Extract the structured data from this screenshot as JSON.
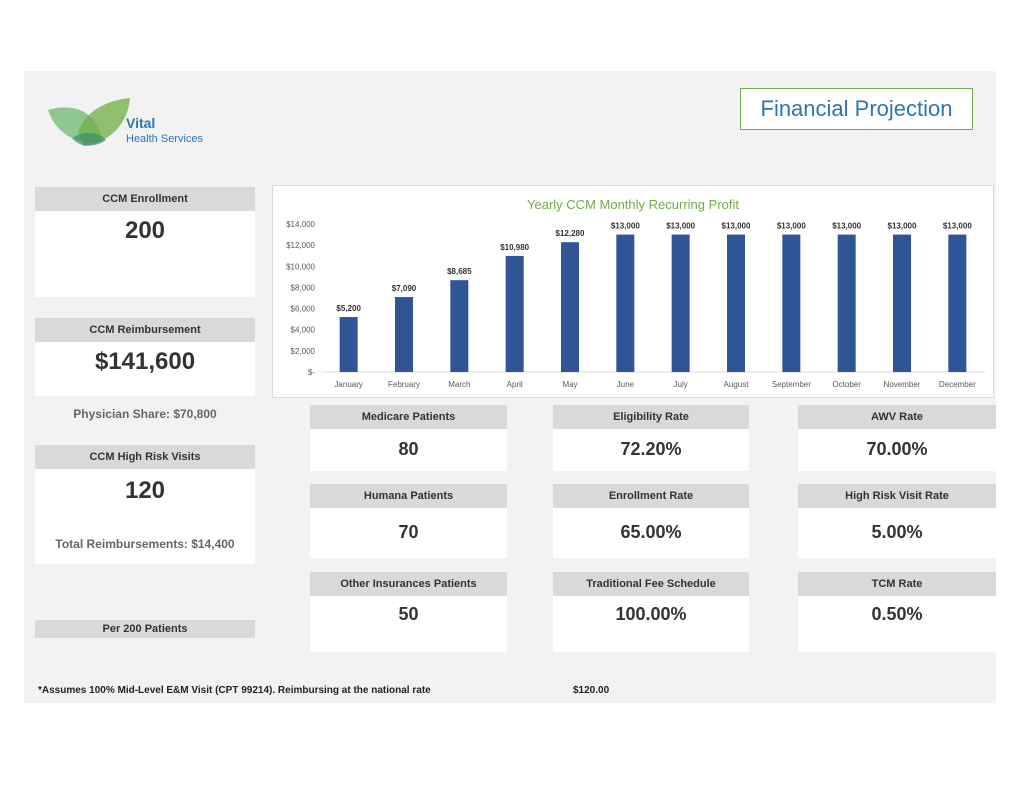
{
  "logo": {
    "name": "Vital",
    "subtitle": "Health Services"
  },
  "title": "Financial Projection",
  "left_cards": {
    "enrollment": {
      "label": "CCM Enrollment",
      "value": "200"
    },
    "reimbursement": {
      "label": "CCM Reimbursement",
      "value": "$141,600",
      "note": "Physician Share: $70,800"
    },
    "high_risk": {
      "label": "CCM High Risk Visits",
      "value": "120",
      "note": "Total Reimbursements: $14,400"
    },
    "per_patients": {
      "label": "Per 200 Patients"
    }
  },
  "metrics": [
    {
      "label": "Medicare Patients",
      "value": "80"
    },
    {
      "label": "Eligibility Rate",
      "value": "72.20%"
    },
    {
      "label": "AWV Rate",
      "value": "70.00%"
    },
    {
      "label": "Humana Patients",
      "value": "70"
    },
    {
      "label": "Enrollment Rate",
      "value": "65.00%"
    },
    {
      "label": "High Risk Visit Rate",
      "value": "5.00%"
    },
    {
      "label": "Other Insurances Patients",
      "value": "50"
    },
    {
      "label": "Traditional Fee Schedule",
      "value": "100.00%"
    },
    {
      "label": "TCM Rate",
      "value": "0.50%"
    }
  ],
  "footnote": {
    "text": "*Assumes 100% Mid-Level E&M Visit (CPT 99214). Reimbursing at the national rate",
    "value": "$120.00"
  },
  "colors": {
    "bar": "#2f5597",
    "title_green": "#70ad47",
    "title_blue": "#2e75b6"
  },
  "chart_data": {
    "type": "bar",
    "title": "Yearly CCM Monthly Recurring Profit",
    "categories": [
      "January",
      "February",
      "March",
      "April",
      "May",
      "June",
      "July",
      "August",
      "September",
      "October",
      "November",
      "December"
    ],
    "values": [
      5200,
      7090,
      8685,
      10980,
      12280,
      13000,
      13000,
      13000,
      13000,
      13000,
      13000,
      13000
    ],
    "data_labels": [
      "$5,200",
      "$7,090",
      "$8,685",
      "$10,980",
      "$12,280",
      "$13,000",
      "$13,000",
      "$13,000",
      "$13,000",
      "$13,000",
      "$13,000",
      "$13,000"
    ],
    "yticks": [
      0,
      2000,
      4000,
      6000,
      8000,
      10000,
      12000,
      14000
    ],
    "ytick_labels": [
      "$-",
      "$2,000",
      "$4,000",
      "$6,000",
      "$8,000",
      "$10,000",
      "$12,000",
      "$14,000"
    ],
    "ylim": [
      0,
      14000
    ],
    "grid": false
  }
}
